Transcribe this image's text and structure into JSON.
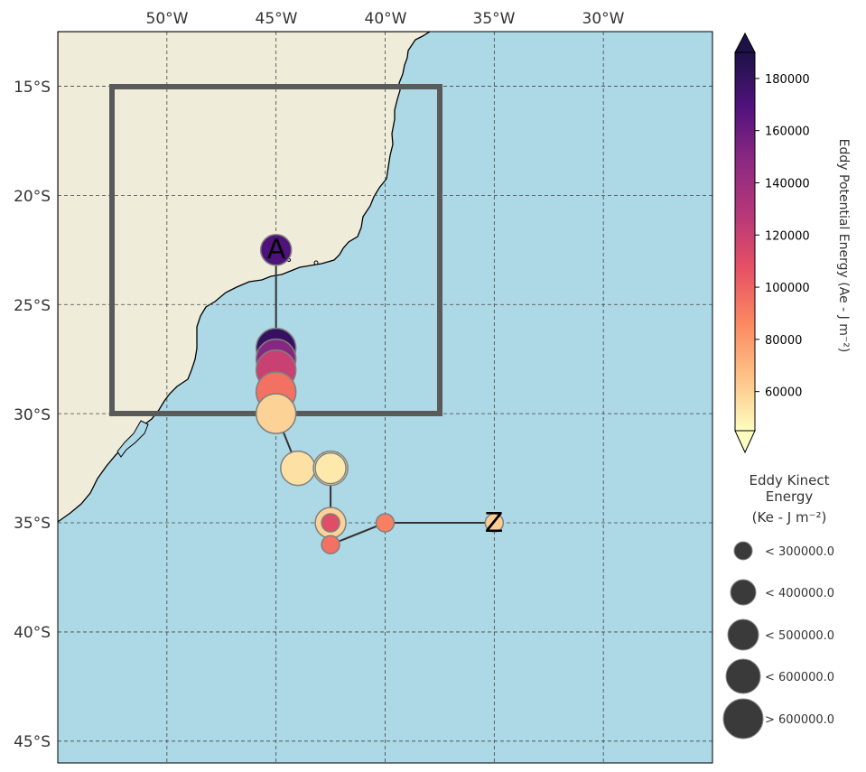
{
  "map": {
    "lon_ticks": [
      "50°W",
      "45°W",
      "40°W",
      "35°W",
      "30°W"
    ],
    "lat_ticks": [
      "15°S",
      "20°S",
      "25°S",
      "30°S",
      "35°S",
      "40°S",
      "45°S"
    ],
    "extent": {
      "lon": [
        -55,
        -25
      ],
      "lat": [
        -46,
        -12.5
      ]
    },
    "colors": {
      "ocean": "#add8e6",
      "land": "#efedda",
      "box": "#5a5a5a",
      "grid": "#444444"
    },
    "box": {
      "lon": [
        -52.5,
        -37.5
      ],
      "lat": [
        -30,
        -15
      ]
    }
  },
  "track": {
    "start_label": "A",
    "end_label": "Z",
    "points": [
      {
        "lon": -45.0,
        "lat": -22.5,
        "ape": 170000,
        "ke_class": 2
      },
      {
        "lon": -45.0,
        "lat": -27.0,
        "ape": 180000,
        "ke_class": 4
      },
      {
        "lon": -45.0,
        "lat": -27.5,
        "ape": 150000,
        "ke_class": 4
      },
      {
        "lon": -45.0,
        "lat": -28.0,
        "ape": 120000,
        "ke_class": 4
      },
      {
        "lon": -45.0,
        "lat": -29.0,
        "ape": 95000,
        "ke_class": 4
      },
      {
        "lon": -45.0,
        "lat": -30.0,
        "ape": 60000,
        "ke_class": 4
      },
      {
        "lon": -44.0,
        "lat": -32.5,
        "ape": 55000,
        "ke_class": 3
      },
      {
        "lon": -42.5,
        "lat": -32.5,
        "ape": 50000,
        "ke_class": 3
      },
      {
        "lon": -42.5,
        "lat": -32.5,
        "ape": 52000,
        "ke_class": 2
      },
      {
        "lon": -42.5,
        "lat": -35.0,
        "ape": 60000,
        "ke_class": 2
      },
      {
        "lon": -42.5,
        "lat": -35.0,
        "ape": 110000,
        "ke_class": 0
      },
      {
        "lon": -42.5,
        "lat": -36.0,
        "ape": 95000,
        "ke_class": 0
      },
      {
        "lon": -40.0,
        "lat": -35.0,
        "ape": 90000,
        "ke_class": 0
      },
      {
        "lon": -35.0,
        "lat": -35.0,
        "ape": 62000,
        "ke_class": 0
      }
    ]
  },
  "colorbar": {
    "title": "Eddy Potential Energy (Ae -  J m⁻²)",
    "ticks": [
      "180000",
      "160000",
      "140000",
      "120000",
      "100000",
      "80000",
      "60000"
    ],
    "tick_values": [
      180000,
      160000,
      140000,
      120000,
      100000,
      80000,
      60000
    ],
    "range": [
      45000,
      190000
    ],
    "stops": [
      "#fcfdbf",
      "#fec287",
      "#fb8861",
      "#e65164",
      "#b73779",
      "#8c2981",
      "#51127c",
      "#1d1147"
    ]
  },
  "size_legend": {
    "title_line1": "Eddy Kinect",
    "title_line2": "Energy",
    "title_line3": "(Ke -  J m⁻²)",
    "entries": [
      "< 300000.0",
      "< 400000.0",
      "< 500000.0",
      "< 600000.0",
      "> 600000.0"
    ]
  }
}
